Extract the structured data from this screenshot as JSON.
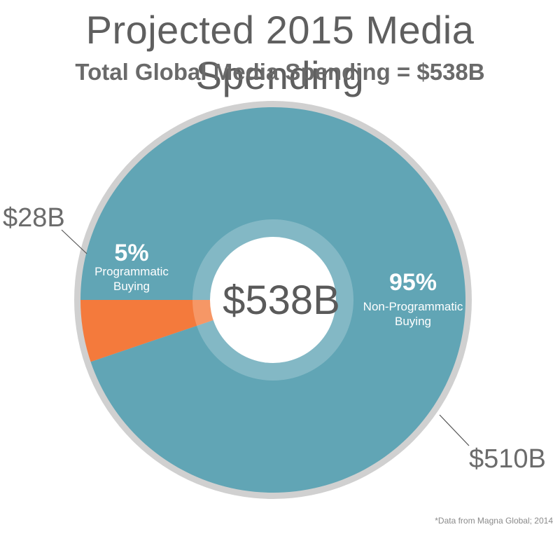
{
  "header": {
    "title": "Projected 2015 Media Spending",
    "subtitle": "Total Global Media Spending = $538B"
  },
  "chart_data": {
    "type": "pie",
    "style": "donut",
    "total_label": "$538B",
    "slices": [
      {
        "label": "Programmatic Buying",
        "percent_label": "5%",
        "value_label": "$28B",
        "value": 28,
        "color": "#f47a3c"
      },
      {
        "label": "Non-Programmatic Buying",
        "percent_label": "95%",
        "value_label": "$510B",
        "value": 510,
        "color": "#61a5b5"
      }
    ],
    "ring_color": "#d0d0d0",
    "inner_ring_color": "#8cbfcc"
  },
  "footer": {
    "source": "*Data from Magna Global; 2014"
  }
}
